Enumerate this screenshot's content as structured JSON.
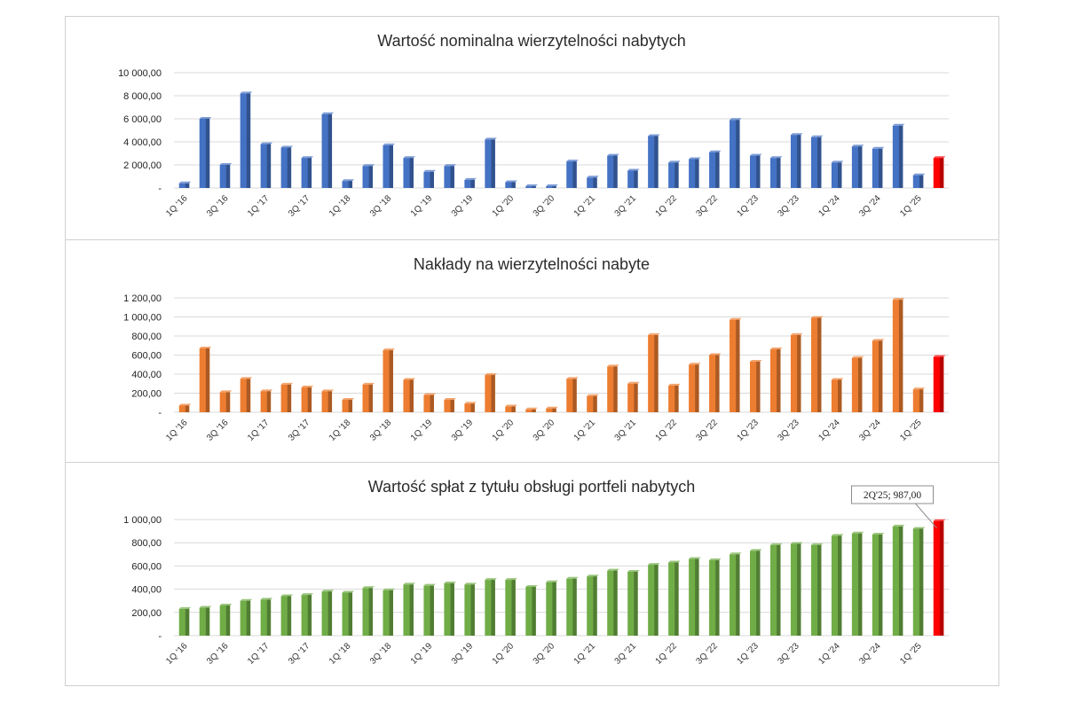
{
  "chart_data": [
    {
      "type": "bar",
      "title": "Wartość nominalna wierzytelności nabytych",
      "yticks": [
        "-",
        "2 000,00",
        "4 000,00",
        "6 000,00",
        "8 000,00",
        "10 000,00"
      ],
      "ylim": [
        0,
        10000
      ],
      "grid": true,
      "categories": [
        "1Q '16",
        "2Q '16",
        "3Q '16",
        "4Q '16",
        "1Q '17",
        "2Q '17",
        "3Q '17",
        "4Q '17",
        "1Q '18",
        "2Q '18",
        "3Q '18",
        "4Q '18",
        "1Q '19",
        "2Q '19",
        "3Q '19",
        "4Q '19",
        "1Q '20",
        "2Q '20",
        "3Q '20",
        "4Q '20",
        "1Q '21",
        "2Q '21",
        "3Q '21",
        "4Q '21",
        "1Q '22",
        "2Q '22",
        "3Q '22",
        "4Q '22",
        "1Q '23",
        "2Q '23",
        "3Q '23",
        "4Q '23",
        "1Q '24",
        "2Q '24",
        "3Q '24",
        "4Q '24",
        "1Q '25",
        "2Q '25"
      ],
      "xtick_labels": [
        "1Q '16",
        "3Q '16",
        "1Q '17",
        "3Q '17",
        "1Q '18",
        "3Q '18",
        "1Q '19",
        "3Q '19",
        "1Q '20",
        "3Q '20",
        "1Q '21",
        "3Q '21",
        "1Q '22",
        "3Q '22",
        "1Q '23",
        "3Q '23",
        "1Q '24",
        "3Q '24",
        "1Q '25"
      ],
      "values": [
        400,
        6000,
        2000,
        8200,
        3800,
        3500,
        2600,
        6400,
        600,
        1900,
        3700,
        2600,
        1400,
        1900,
        700,
        4200,
        500,
        150,
        150,
        2300,
        900,
        2800,
        1500,
        4500,
        2200,
        2500,
        3100,
        5900,
        2800,
        2600,
        4600,
        4400,
        2200,
        3600,
        3400,
        5400,
        1100,
        2600
      ],
      "colors": {
        "bar": "#4472c4",
        "highlight": "#ff0000"
      }
    },
    {
      "type": "bar",
      "title": "Nakłady na wierzytelności nabyte",
      "yticks": [
        "-",
        "200,00",
        "400,00",
        "600,00",
        "800,00",
        "1 000,00",
        "1 200,00"
      ],
      "ylim": [
        0,
        1200
      ],
      "grid": true,
      "categories": [
        "1Q '16",
        "2Q '16",
        "3Q '16",
        "4Q '16",
        "1Q '17",
        "2Q '17",
        "3Q '17",
        "4Q '17",
        "1Q '18",
        "2Q '18",
        "3Q '18",
        "4Q '18",
        "1Q '19",
        "2Q '19",
        "3Q '19",
        "4Q '19",
        "1Q '20",
        "2Q '20",
        "3Q '20",
        "4Q '20",
        "1Q '21",
        "2Q '21",
        "3Q '21",
        "4Q '21",
        "1Q '22",
        "2Q '22",
        "3Q '22",
        "4Q '22",
        "1Q '23",
        "2Q '23",
        "3Q '23",
        "4Q '23",
        "1Q '24",
        "2Q '24",
        "3Q '24",
        "4Q '24",
        "1Q '25",
        "2Q '25"
      ],
      "xtick_labels": [
        "1Q '16",
        "3Q '16",
        "1Q '17",
        "3Q '17",
        "1Q '18",
        "3Q '18",
        "1Q '19",
        "3Q '19",
        "1Q '20",
        "3Q '20",
        "1Q '21",
        "3Q '21",
        "1Q '22",
        "3Q '22",
        "1Q '23",
        "3Q '23",
        "1Q '24",
        "3Q '24",
        "1Q '25"
      ],
      "values": [
        70,
        670,
        210,
        350,
        220,
        290,
        260,
        220,
        130,
        290,
        650,
        340,
        180,
        130,
        90,
        390,
        60,
        30,
        40,
        350,
        170,
        480,
        300,
        810,
        280,
        500,
        600,
        970,
        530,
        660,
        810,
        990,
        340,
        570,
        750,
        1180,
        240,
        580
      ],
      "colors": {
        "bar": "#ed7d31",
        "highlight": "#ff0000"
      }
    },
    {
      "type": "bar",
      "title": "Wartość spłat z tytułu obsługi portfeli nabytych",
      "yticks": [
        "-",
        "200,00",
        "400,00",
        "600,00",
        "800,00",
        "1 000,00"
      ],
      "ylim": [
        0,
        1000
      ],
      "grid": true,
      "categories": [
        "1Q '16",
        "2Q '16",
        "3Q '16",
        "4Q '16",
        "1Q '17",
        "2Q '17",
        "3Q '17",
        "4Q '17",
        "1Q '18",
        "2Q '18",
        "3Q '18",
        "4Q '18",
        "1Q '19",
        "2Q '19",
        "3Q '19",
        "4Q '19",
        "1Q '20",
        "2Q '20",
        "3Q '20",
        "4Q '20",
        "1Q '21",
        "2Q '21",
        "3Q '21",
        "4Q '21",
        "1Q '22",
        "2Q '22",
        "3Q '22",
        "4Q '22",
        "1Q '23",
        "2Q '23",
        "3Q '23",
        "4Q '23",
        "1Q '24",
        "2Q '24",
        "3Q '24",
        "4Q '24",
        "1Q '25",
        "2Q '25"
      ],
      "xtick_labels": [
        "1Q '16",
        "3Q '16",
        "1Q '17",
        "3Q '17",
        "1Q '18",
        "3Q '18",
        "1Q '19",
        "3Q '19",
        "1Q '20",
        "3Q '20",
        "1Q '21",
        "3Q '21",
        "1Q '22",
        "3Q '22",
        "1Q '23",
        "3Q '23",
        "1Q '24",
        "3Q '24",
        "1Q '25"
      ],
      "values": [
        230,
        240,
        260,
        300,
        310,
        340,
        350,
        380,
        370,
        410,
        390,
        440,
        430,
        450,
        440,
        480,
        480,
        420,
        460,
        490,
        510,
        560,
        550,
        610,
        630,
        660,
        650,
        700,
        730,
        780,
        790,
        780,
        860,
        880,
        870,
        940,
        920,
        987
      ],
      "annotation": {
        "text": "2Q'25;  987,00",
        "index": 37
      },
      "colors": {
        "bar": "#70ad47",
        "highlight": "#ff0000"
      }
    }
  ]
}
